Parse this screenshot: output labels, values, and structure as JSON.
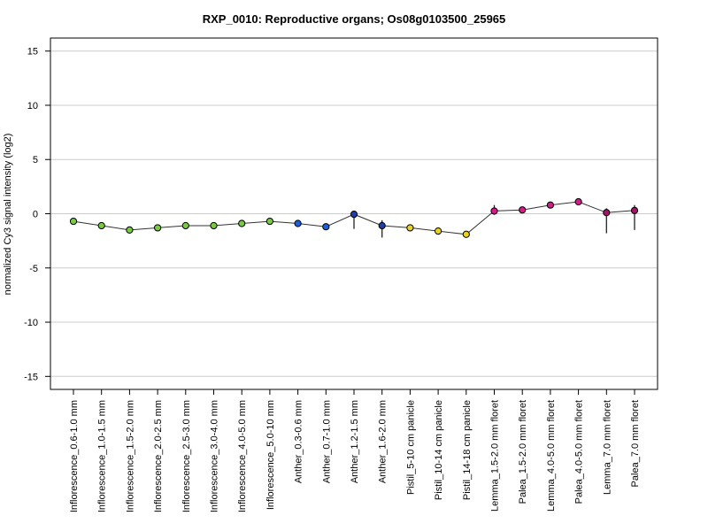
{
  "chart_data": {
    "type": "line",
    "title": "RXP_0010: Reproductive organs; Os08g0103500_25965",
    "xlabel": "",
    "ylabel": "normalized Cy3 signal intensity (log2)",
    "ylim": [
      -16.2,
      16.2
    ],
    "yticks": [
      -15,
      -10,
      -5,
      0,
      5,
      10,
      15
    ],
    "grid": "horizontal",
    "categories": [
      "Inflorescence_0.6-1.0 mm",
      "Inflorescence_1.0-1.5 mm",
      "Inflorescence_1.5-2.0 mm",
      "Inflorescence_2.0-2.5 mm",
      "Inflorescence_2.5-3.0 mm",
      "Inflorescence_3.0-4.0 mm",
      "Inflorescence_4.0-5.0 mm",
      "Inflorescence_5.0-10 mm",
      "Anther_0.3-0.6 mm",
      "Anther_0.7-1.0 mm",
      "Anther_1.2-1.5 mm",
      "Anther_1.6-2.0 mm",
      "Pistil_5-10 cm panicle",
      "Pistil_10-14 cm panicle",
      "Pistil_14-18 cm panicle",
      "Lemma_1.5-2.0 mm floret",
      "Palea_1.5-2.0 mm floret",
      "Lemma_4.0-5.0 mm floret",
      "Palea_4.0-5.0 mm floret",
      "Lemma_7.0 mm floret",
      "Palea_7.0 mm floret"
    ],
    "values": [
      -0.7,
      -1.1,
      -1.5,
      -1.3,
      -1.1,
      -1.1,
      -0.9,
      -0.7,
      -0.9,
      -1.2,
      -0.05,
      -1.1,
      -1.3,
      -1.6,
      -1.9,
      0.25,
      0.35,
      0.8,
      1.1,
      0.1,
      0.3
    ],
    "error_low": [
      -0.7,
      -1.1,
      -1.5,
      -1.3,
      -1.1,
      -1.1,
      -0.9,
      -0.7,
      -0.9,
      -1.2,
      -1.4,
      -2.2,
      -1.3,
      -1.9,
      -1.9,
      -0.1,
      0.2,
      0.6,
      0.8,
      -1.8,
      -1.5
    ],
    "error_high": [
      -0.7,
      -1.1,
      -1.5,
      -1.3,
      -1.1,
      -1.1,
      -0.9,
      -0.7,
      -0.9,
      -1.2,
      0.1,
      -0.6,
      -1.3,
      -1.3,
      -1.9,
      0.8,
      0.5,
      1.0,
      1.4,
      0.5,
      0.8
    ],
    "point_colors": [
      "#7ac943",
      "#7ac943",
      "#7ac943",
      "#7ac943",
      "#7ac943",
      "#7ac943",
      "#7ac943",
      "#7ac943",
      "#1f5fd6",
      "#1f5fd6",
      "#1f3fa8",
      "#1f3fa8",
      "#e8d21c",
      "#e8d21c",
      "#e8d21c",
      "#d61a8c",
      "#d61a8c",
      "#d61a8c",
      "#d61a8c",
      "#a8106a",
      "#a8106a"
    ],
    "line_color": "#333333",
    "grid_color": "#cccccc"
  }
}
